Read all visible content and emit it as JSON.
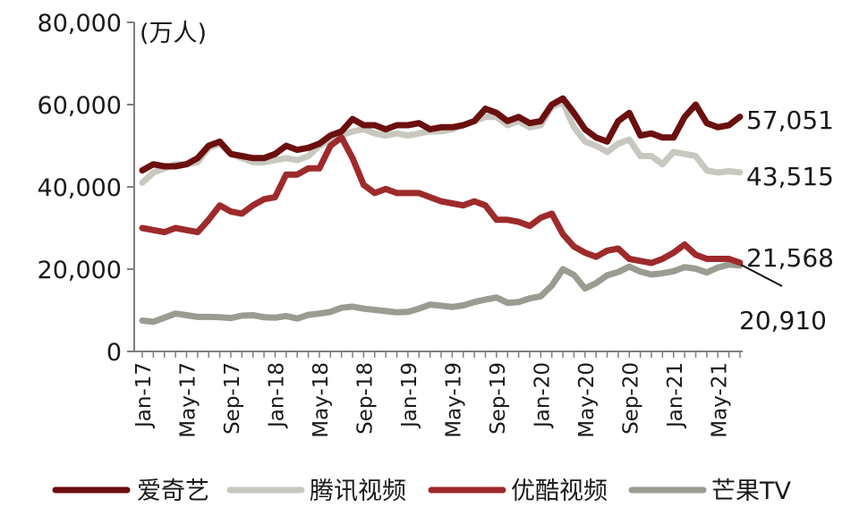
{
  "chart_data": {
    "type": "line",
    "unit_label": "(万人)",
    "y_ticks": [
      "80,000",
      "60,000",
      "40,000",
      "20,000",
      "0"
    ],
    "ylim": [
      0,
      80000
    ],
    "x_tick_labels": [
      "Jan-17",
      "May-17",
      "Sep-17",
      "Jan-18",
      "May-18",
      "Sep-18",
      "Jan-19",
      "May-19",
      "Sep-19",
      "Jan-20",
      "May-20",
      "Sep-20",
      "Jan-21",
      "May-21"
    ],
    "grid": false,
    "legend_position": "bottom",
    "series": [
      {
        "name": "爱奇艺",
        "color": "#6b0f0f",
        "end_label": "57,051",
        "values": [
          44000,
          45500,
          45000,
          45000,
          45500,
          47000,
          50000,
          51000,
          48000,
          47500,
          47000,
          47000,
          48000,
          50000,
          49000,
          49500,
          50500,
          52500,
          53500,
          56500,
          55000,
          55000,
          54000,
          55000,
          55000,
          55500,
          54000,
          54500,
          54500,
          55000,
          56000,
          59000,
          58000,
          56000,
          57000,
          55500,
          56000,
          60000,
          61500,
          58000,
          54000,
          52000,
          51000,
          56000,
          58000,
          52500,
          53000,
          52000,
          52000,
          57000,
          60000,
          55500,
          54500,
          55000,
          57051
        ]
      },
      {
        "name": "腾讯视频",
        "color": "#c8c8c0",
        "end_label": "43,515",
        "values": [
          41000,
          43500,
          44500,
          45500,
          45500,
          46000,
          49500,
          50500,
          48000,
          47000,
          46000,
          46000,
          46500,
          47000,
          46500,
          47500,
          50000,
          51500,
          52500,
          53500,
          54000,
          53000,
          52500,
          53000,
          52500,
          53000,
          53500,
          53500,
          54000,
          55000,
          56000,
          57000,
          57000,
          55000,
          56000,
          54500,
          55000,
          59500,
          60500,
          54500,
          51000,
          50000,
          48500,
          50500,
          51500,
          47500,
          47500,
          45500,
          48500,
          48000,
          47500,
          44000,
          43500,
          43800,
          43515
        ]
      },
      {
        "name": "优酷视频",
        "color": "#9e2a2b",
        "end_label": "21,568",
        "values": [
          30000,
          29500,
          29000,
          30000,
          29500,
          29000,
          32000,
          35500,
          34000,
          33500,
          35500,
          37000,
          37500,
          43000,
          43000,
          44500,
          44500,
          50000,
          52000,
          47000,
          40500,
          38500,
          39500,
          38500,
          38500,
          38500,
          37500,
          36500,
          36000,
          35500,
          36500,
          35500,
          32000,
          32000,
          31500,
          30500,
          32500,
          33500,
          28500,
          25500,
          24000,
          23000,
          24500,
          25000,
          22500,
          22000,
          21500,
          22500,
          24000,
          26000,
          23500,
          22500,
          22500,
          22500,
          21568
        ]
      },
      {
        "name": "芒果TV",
        "color": "#9b9b92",
        "end_label": "20,910",
        "values": [
          7500,
          7200,
          8200,
          9200,
          8800,
          8400,
          8400,
          8300,
          8100,
          8700,
          8800,
          8300,
          8200,
          8600,
          8000,
          8900,
          9200,
          9600,
          10600,
          10900,
          10400,
          10100,
          9800,
          9500,
          9600,
          10400,
          11400,
          11100,
          10800,
          11200,
          12000,
          12600,
          13100,
          11800,
          12000,
          12900,
          13400,
          16000,
          20000,
          18600,
          15300,
          16600,
          18500,
          19300,
          20600,
          19400,
          18700,
          19000,
          19500,
          20500,
          20100,
          19200,
          20400,
          21100,
          20910
        ]
      }
    ]
  }
}
